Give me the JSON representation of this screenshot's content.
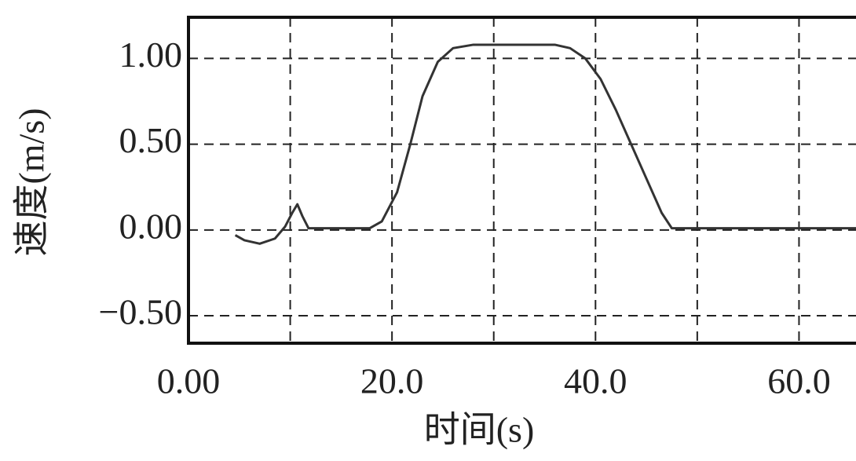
{
  "chart_data": {
    "type": "line",
    "x_label": "时间(s)",
    "y_label": "速度(m/s)",
    "xlim": [
      0,
      65.6
    ],
    "ylim": [
      -0.66,
      1.24
    ],
    "xticks": [
      {
        "value": 0,
        "label": "0.00"
      },
      {
        "value": 20,
        "label": "20.0"
      },
      {
        "value": 40,
        "label": "40.0"
      },
      {
        "value": 60,
        "label": "60.0"
      }
    ],
    "xminor": [
      10,
      30,
      50
    ],
    "yticks": [
      {
        "value": -0.5,
        "label": "−0.50"
      },
      {
        "value": 0,
        "label": "0.00"
      },
      {
        "value": 0.5,
        "label": "0.50"
      },
      {
        "value": 1,
        "label": "1.00"
      }
    ],
    "grid": true,
    "series": [
      {
        "color": "#333333",
        "x": [
          4.6,
          5.5,
          7,
          8.5,
          9.5,
          10.2,
          10.7,
          11.2,
          11.8,
          14,
          17.8,
          19,
          20.5,
          21.8,
          23,
          24.5,
          26,
          28,
          32,
          36,
          37.5,
          39,
          40.5,
          42,
          43.5,
          45,
          46.5,
          47.5,
          55,
          65.6
        ],
        "values": [
          -0.03,
          -0.06,
          -0.08,
          -0.05,
          0.02,
          0.1,
          0.15,
          0.08,
          0.01,
          0.01,
          0.01,
          0.05,
          0.22,
          0.5,
          0.78,
          0.98,
          1.06,
          1.08,
          1.08,
          1.08,
          1.06,
          1.0,
          0.88,
          0.7,
          0.5,
          0.3,
          0.1,
          0.01,
          0.01,
          0.01
        ]
      }
    ]
  }
}
